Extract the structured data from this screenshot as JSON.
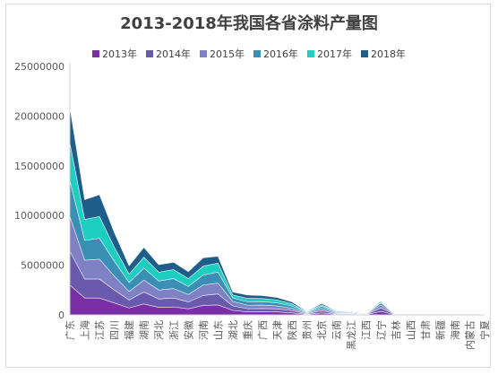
{
  "chart_data": {
    "type": "area",
    "stacked": true,
    "title": "2013-2018年我国各省涂料产量图",
    "legend_position": "top",
    "grid": false,
    "ylim": [
      0,
      25000000
    ],
    "yticks": [
      0,
      5000000,
      10000000,
      15000000,
      20000000,
      25000000
    ],
    "categories": [
      "广东",
      "上海",
      "江苏",
      "四川",
      "福建",
      "湖南",
      "河北",
      "浙江",
      "安徽",
      "河南",
      "山东",
      "湖北",
      "重庆",
      "广西",
      "天津",
      "陕西",
      "贵州",
      "北京",
      "云南",
      "黑龙江",
      "江西",
      "辽宁",
      "吉林",
      "山西",
      "甘肃",
      "新疆",
      "海南",
      "内蒙古",
      "宁夏"
    ],
    "series": [
      {
        "name": "2013年",
        "color": "#7B2FA6",
        "values": [
          3000000,
          1700000,
          1700000,
          1200000,
          700000,
          1100000,
          750000,
          800000,
          600000,
          950000,
          1000000,
          450000,
          300000,
          320000,
          300000,
          200000,
          50000,
          200000,
          50000,
          50000,
          20000,
          350000,
          0,
          0,
          0,
          0,
          0,
          0,
          0
        ]
      },
      {
        "name": "2014年",
        "color": "#6A5AAE",
        "values": [
          3400000,
          1900000,
          1900000,
          1300000,
          800000,
          1200000,
          850000,
          900000,
          700000,
          1000000,
          1100000,
          450000,
          320000,
          320000,
          300000,
          230000,
          60000,
          230000,
          60000,
          50000,
          20000,
          350000,
          0,
          0,
          0,
          0,
          0,
          0,
          0
        ]
      },
      {
        "name": "2015年",
        "color": "#7E82C5",
        "values": [
          3500000,
          1900000,
          2000000,
          1400000,
          850000,
          1200000,
          900000,
          950000,
          750000,
          1050000,
          1100000,
          450000,
          350000,
          350000,
          300000,
          230000,
          60000,
          230000,
          70000,
          60000,
          30000,
          300000,
          0,
          0,
          0,
          0,
          0,
          0,
          0
        ]
      },
      {
        "name": "2016年",
        "color": "#3B8FB5",
        "values": [
          3600000,
          2000000,
          2100000,
          1500000,
          900000,
          1200000,
          900000,
          1000000,
          800000,
          1000000,
          1100000,
          350000,
          350000,
          350000,
          300000,
          230000,
          60000,
          200000,
          70000,
          60000,
          30000,
          200000,
          0,
          0,
          0,
          0,
          0,
          0,
          0
        ]
      },
      {
        "name": "2017年",
        "color": "#1ECEC1",
        "values": [
          3800000,
          2100000,
          2200000,
          1400000,
          850000,
          1100000,
          900000,
          900000,
          800000,
          900000,
          900000,
          300000,
          340000,
          300000,
          300000,
          220000,
          60000,
          150000,
          70000,
          60000,
          30000,
          100000,
          0,
          0,
          0,
          0,
          0,
          0,
          0
        ]
      },
      {
        "name": "2018年",
        "color": "#1F5E8B",
        "values": [
          3600000,
          2000000,
          2200000,
          1500000,
          850000,
          1000000,
          750000,
          750000,
          700000,
          850000,
          700000,
          300000,
          340000,
          300000,
          250000,
          200000,
          60000,
          140000,
          60000,
          60000,
          30000,
          100000,
          0,
          0,
          0,
          0,
          0,
          0,
          0
        ]
      }
    ]
  }
}
